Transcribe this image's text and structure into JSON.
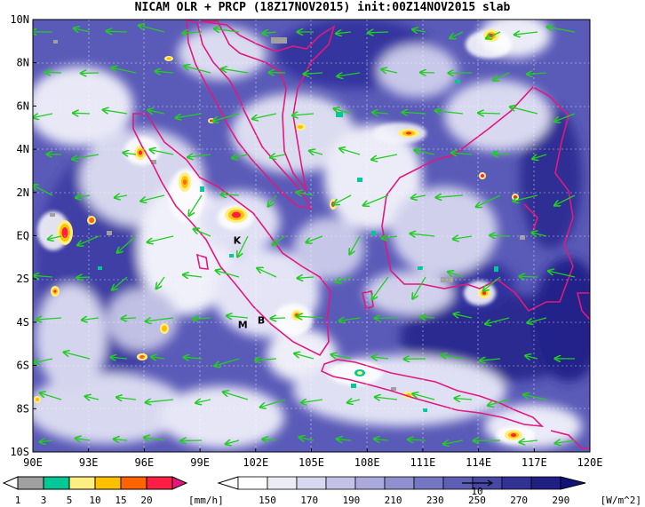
{
  "title": "NICAM OLR + PRCP (18Z17NOV2015) init:00Z14NOV2015 slab",
  "map": {
    "lat_ticks": [
      "10N",
      "8N",
      "6N",
      "4N",
      "2N",
      "EQ",
      "2S",
      "4S",
      "6S",
      "8S",
      "10S"
    ],
    "lon_ticks": [
      "90E",
      "93E",
      "96E",
      "99E",
      "102E",
      "105E",
      "108E",
      "111E",
      "114E",
      "117E",
      "120E"
    ],
    "lat_range": [
      -10,
      10
    ],
    "lon_range": [
      90,
      120
    ],
    "grid": true,
    "coastline_color": "#e0197d",
    "wind_vector_color": "#22cc22",
    "markers": [
      {
        "label": "K",
        "lon": 101.0,
        "lat": -0.2
      },
      {
        "label": "M",
        "lon": 101.3,
        "lat": -4.1
      },
      {
        "label": "B",
        "lon": 102.3,
        "lat": -3.9
      }
    ]
  },
  "precip_colorbar": {
    "ticks": [
      "1",
      "3",
      "5",
      "10",
      "15",
      "20"
    ],
    "unit": "[mm/h]",
    "colors": [
      "#a0a0a0",
      "#00c896",
      "#ffef82",
      "#ffc000",
      "#ff6400",
      "#ff1e46",
      "#e6147d"
    ]
  },
  "olr_colorbar": {
    "ticks": [
      "150",
      "170",
      "190",
      "210",
      "230",
      "250",
      "270",
      "290"
    ],
    "unit": "[W/m^2]",
    "reference_vector_label": "10",
    "colors": [
      "#ffffff",
      "#ececf7",
      "#d8d8f0",
      "#c2c2e6",
      "#aaaadc",
      "#9090d0",
      "#7676c2",
      "#5e5eb4",
      "#4848a4",
      "#323294",
      "#202084",
      "#12127a"
    ]
  }
}
